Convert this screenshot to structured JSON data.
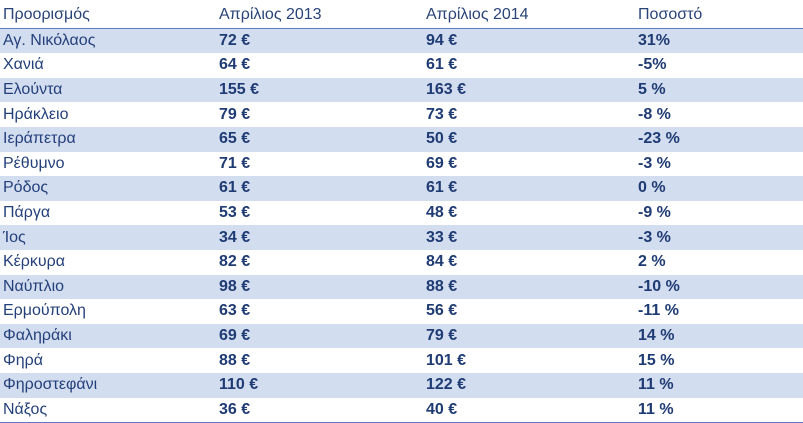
{
  "table": {
    "headers": [
      "Προορισμός",
      "Απρίλιος 2013",
      "Απρίλιος 2014",
      "Ποσοστό"
    ],
    "rows": [
      [
        "Αγ. Νικόλαος",
        "72 €",
        "94 €",
        "31%"
      ],
      [
        "Χανιά",
        "64 €",
        "61 €",
        "-5%"
      ],
      [
        "Ελούντα",
        "155 €",
        "163 €",
        "5 %"
      ],
      [
        "Ηράκλειο",
        "79 €",
        "73 €",
        "-8 %"
      ],
      [
        "Ιεράπετρα",
        "65 €",
        "50 €",
        "-23 %"
      ],
      [
        "Ρέθυμνο",
        "71 €",
        "69 €",
        "-3 %"
      ],
      [
        "Ρόδος",
        "61 €",
        "61 €",
        "0 %"
      ],
      [
        "Πάργα",
        "53 €",
        "48 €",
        "-9 %"
      ],
      [
        "Ίος",
        "34 €",
        "33 €",
        "-3 %"
      ],
      [
        "Κέρκυρα",
        "82 €",
        "84 €",
        "2 %"
      ],
      [
        "Ναύπλιο",
        "98 €",
        "88 €",
        "-10 %"
      ],
      [
        "Ερμούπολη",
        "63 €",
        "56 €",
        "-11 %"
      ],
      [
        "Φαληράκι",
        "69 €",
        "79 €",
        "14 %"
      ],
      [
        "Φηρά",
        "88 €",
        "101 €",
        "15 %"
      ],
      [
        "Φηροστεφάνι",
        "110 €",
        "122 €",
        "11 %"
      ],
      [
        "Νάξος",
        "36 €",
        "40 €",
        "11 %"
      ]
    ]
  },
  "colors": {
    "text": "#1f3b73",
    "band": "#d3ddf0",
    "rule": "#5a7bbf"
  }
}
